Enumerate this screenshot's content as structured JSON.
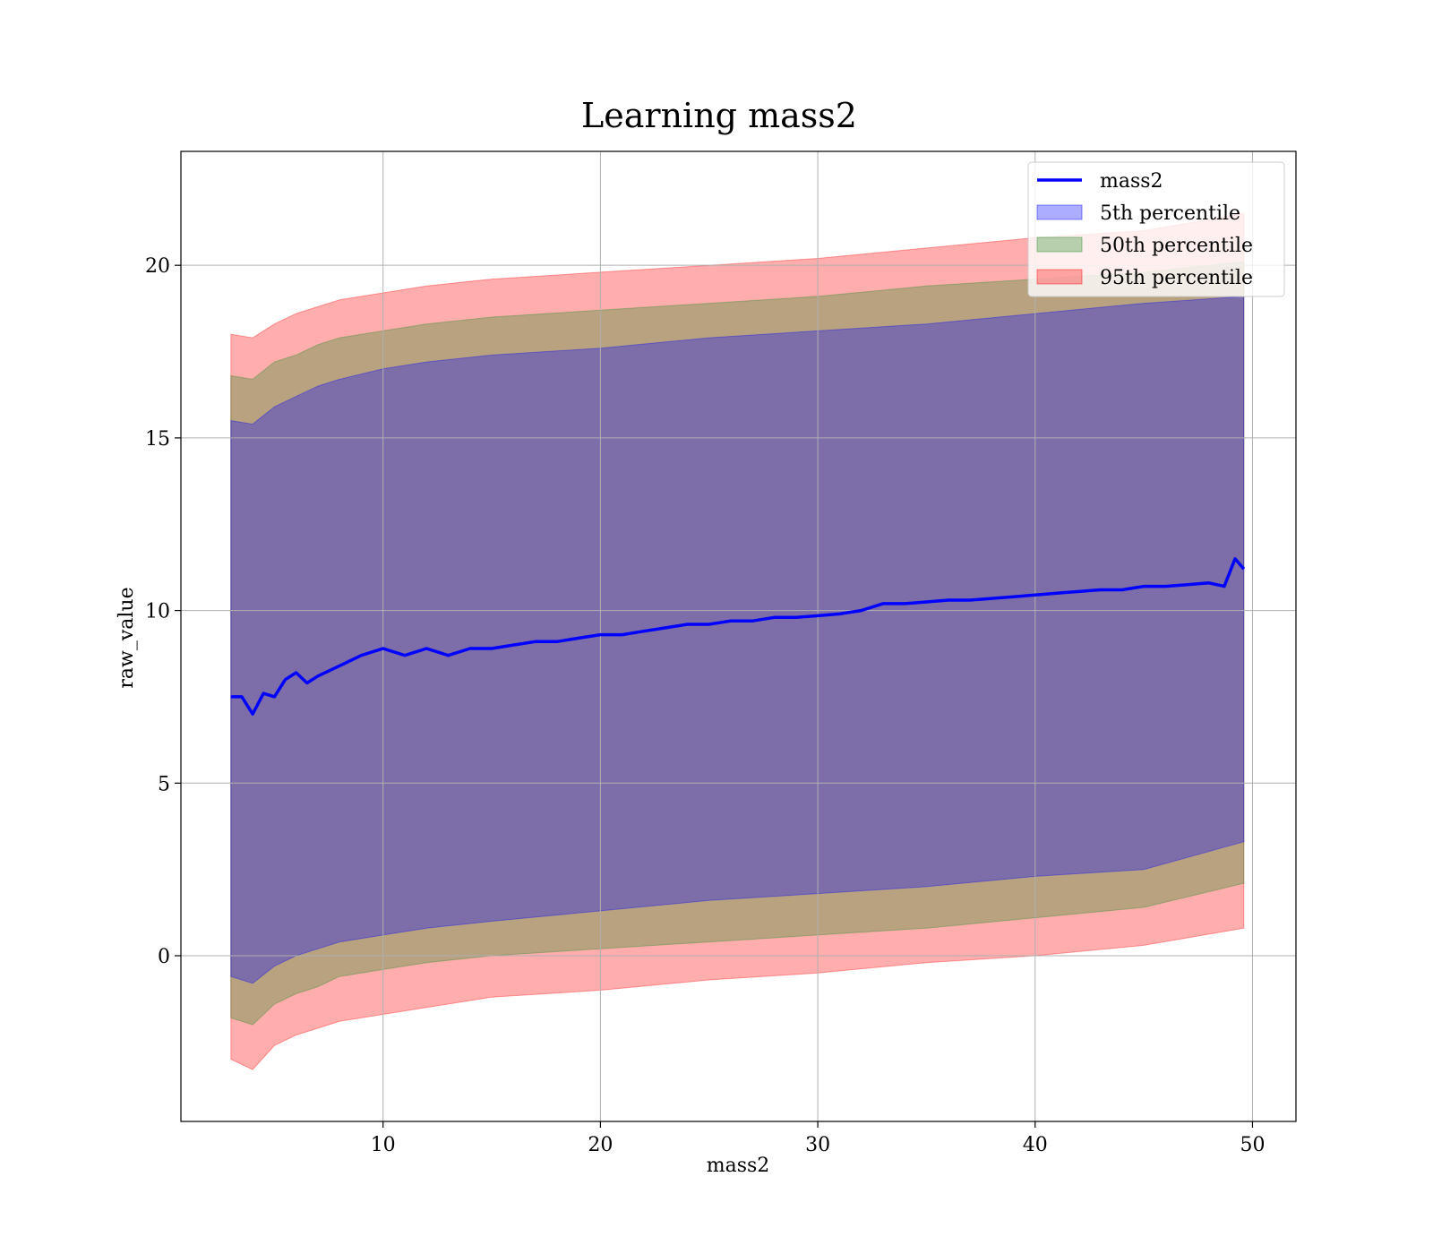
{
  "chart_data": {
    "type": "area",
    "title": "Learning mass2",
    "xlabel": "mass2",
    "ylabel": "raw_value",
    "xlim": [
      0.7,
      52
    ],
    "ylim": [
      -4.8,
      23.3
    ],
    "xticks": [
      10,
      20,
      30,
      40,
      50
    ],
    "yticks": [
      0,
      5,
      10,
      15,
      20
    ],
    "grid": true,
    "legend_position": "upper right",
    "legend": [
      "mass2",
      "5th percentile",
      "50th percentile",
      "95th percentile"
    ],
    "line": {
      "name": "mass2",
      "color": "#0000ff",
      "x": [
        3,
        3.5,
        4,
        4.5,
        5,
        5.5,
        6,
        6.5,
        7,
        8,
        9,
        10,
        11,
        12,
        13,
        14,
        15,
        16,
        17,
        18,
        19,
        20,
        21,
        22,
        23,
        24,
        25,
        26,
        27,
        28,
        29,
        30,
        31,
        32,
        33,
        34,
        35,
        36,
        37,
        38,
        39,
        40,
        41,
        42,
        43,
        44,
        45,
        46,
        47,
        48,
        48.7,
        49.2,
        49.6
      ],
      "y": [
        7.5,
        7.5,
        7.0,
        7.6,
        7.5,
        8.0,
        8.2,
        7.9,
        8.1,
        8.4,
        8.7,
        8.9,
        8.7,
        8.9,
        8.7,
        8.9,
        8.9,
        9.0,
        9.1,
        9.1,
        9.2,
        9.3,
        9.3,
        9.4,
        9.5,
        9.6,
        9.6,
        9.7,
        9.7,
        9.8,
        9.8,
        9.85,
        9.9,
        10.0,
        10.2,
        10.2,
        10.25,
        10.3,
        10.3,
        10.35,
        10.4,
        10.45,
        10.5,
        10.55,
        10.6,
        10.6,
        10.7,
        10.7,
        10.75,
        10.8,
        10.7,
        11.5,
        11.2
      ]
    },
    "bands": [
      {
        "name": "5th percentile",
        "color": "#0000ff",
        "x": [
          3,
          4,
          5,
          6,
          7,
          8,
          10,
          12,
          15,
          20,
          25,
          30,
          35,
          40,
          45,
          49.6
        ],
        "upper": [
          15.5,
          15.4,
          15.9,
          16.2,
          16.5,
          16.7,
          17.0,
          17.2,
          17.4,
          17.6,
          17.9,
          18.1,
          18.3,
          18.6,
          18.9,
          19.1
        ],
        "lower": [
          -0.6,
          -0.8,
          -0.3,
          0.0,
          0.2,
          0.4,
          0.6,
          0.8,
          1.0,
          1.3,
          1.6,
          1.8,
          2.0,
          2.3,
          2.5,
          3.3
        ]
      },
      {
        "name": "50th percentile",
        "color": "#228b22",
        "x": [
          3,
          4,
          5,
          6,
          7,
          8,
          10,
          12,
          15,
          20,
          25,
          30,
          35,
          40,
          45,
          49.6
        ],
        "upper": [
          16.8,
          16.7,
          17.2,
          17.4,
          17.7,
          17.9,
          18.1,
          18.3,
          18.5,
          18.7,
          18.9,
          19.1,
          19.4,
          19.6,
          19.8,
          20.1
        ],
        "lower": [
          -1.8,
          -2.0,
          -1.4,
          -1.1,
          -0.9,
          -0.6,
          -0.4,
          -0.2,
          0.0,
          0.2,
          0.4,
          0.6,
          0.8,
          1.1,
          1.4,
          2.1
        ]
      },
      {
        "name": "95th percentile",
        "color": "#ff0000",
        "x": [
          3,
          4,
          5,
          6,
          7,
          8,
          10,
          12,
          15,
          20,
          25,
          30,
          35,
          40,
          45,
          49.6
        ],
        "upper": [
          18.0,
          17.9,
          18.3,
          18.6,
          18.8,
          19.0,
          19.2,
          19.4,
          19.6,
          19.8,
          20.0,
          20.2,
          20.5,
          20.8,
          21.0,
          21.5
        ],
        "lower": [
          -3.0,
          -3.3,
          -2.6,
          -2.3,
          -2.1,
          -1.9,
          -1.7,
          -1.5,
          -1.2,
          -1.0,
          -0.7,
          -0.5,
          -0.2,
          0.0,
          0.3,
          0.8
        ]
      }
    ]
  }
}
